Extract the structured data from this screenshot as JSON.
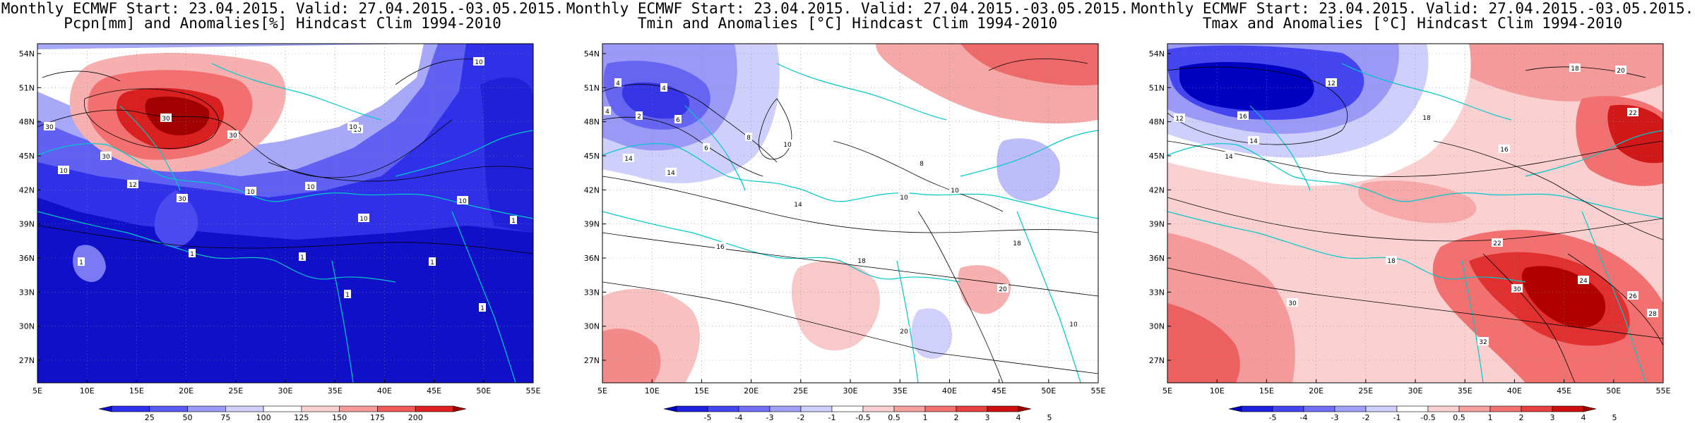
{
  "lat_labels": [
    "54N",
    "51N",
    "48N",
    "45N",
    "42N",
    "39N",
    "36N",
    "33N",
    "30N",
    "27N"
  ],
  "lon_labels": [
    "5E",
    "10E",
    "15E",
    "20E",
    "25E",
    "30E",
    "35E",
    "40E",
    "45E",
    "50E",
    "55E"
  ],
  "panels": [
    {
      "title_line1": "Monthly ECMWF Start: 23.04.2015. Valid: 27.04.2015.-03.05.2015.",
      "title_line2": "Pcpn[mm] and Anomalies[%] Hindcast Clim 1994-2010",
      "colorbar": {
        "labels": [
          "25",
          "50",
          "75",
          "100",
          "125",
          "150",
          "175",
          "200"
        ],
        "colors": [
          "#1010c8",
          "#2f2ff0",
          "#5a5af5",
          "#9a9af8",
          "#d0d0fb",
          "#ffffff",
          "#fbd0d0",
          "#f79a9a",
          "#f25a5a",
          "#e02020",
          "#a00000"
        ]
      },
      "contour_labels": [
        "30",
        "30",
        "30",
        "30",
        "30",
        "10",
        "10",
        "10",
        "10",
        "10",
        "10",
        "10",
        "10",
        "12",
        "1",
        "1",
        "1",
        "1",
        "1",
        "1",
        "1"
      ]
    },
    {
      "title_line1": "Monthly ECMWF Start: 23.04.2015. Valid: 27.04.2015.-03.05.2015.",
      "title_line2": "Tmin and Anomalies [°C] Hindcast Clim 1994-2010",
      "colorbar": {
        "labels": [
          "-5",
          "-4",
          "-3",
          "-2",
          "-1",
          "-0.5",
          "0.5",
          "1",
          "2",
          "3",
          "4",
          "5"
        ],
        "colors": [
          "#0000c0",
          "#2020e0",
          "#4545f0",
          "#7070f5",
          "#a0a0f8",
          "#cfcffb",
          "#ffffff",
          "#fbd0d0",
          "#f7a0a0",
          "#f27070",
          "#e84040",
          "#d01010",
          "#a00000"
        ]
      },
      "contour_labels": [
        "4",
        "4",
        "4",
        "2",
        "6",
        "8",
        "6",
        "10",
        "10",
        "14",
        "14",
        "14",
        "16",
        "18",
        "18",
        "20",
        "20",
        "10",
        "8",
        "10"
      ]
    },
    {
      "title_line1": "Monthly ECMWF Start: 23.04.2015. Valid: 27.04.2015.-03.05.2015.",
      "title_line2": "Tmax and Anomalies [°C] Hindcast Clim 1994-2010",
      "colorbar": {
        "labels": [
          "-5",
          "-4",
          "-3",
          "-2",
          "-1",
          "-0.5",
          "0.5",
          "1",
          "2",
          "3",
          "4",
          "5"
        ],
        "colors": [
          "#0000c0",
          "#2020e0",
          "#4545f0",
          "#7070f5",
          "#a0a0f8",
          "#cfcffb",
          "#ffffff",
          "#fbd0d0",
          "#f7a0a0",
          "#f27070",
          "#e84040",
          "#d01010",
          "#a00000"
        ]
      },
      "contour_labels": [
        "12",
        "12",
        "14",
        "16",
        "18",
        "18",
        "20",
        "22",
        "22",
        "24",
        "26",
        "28",
        "30",
        "30",
        "32",
        "18",
        "16",
        "14"
      ]
    }
  ]
}
